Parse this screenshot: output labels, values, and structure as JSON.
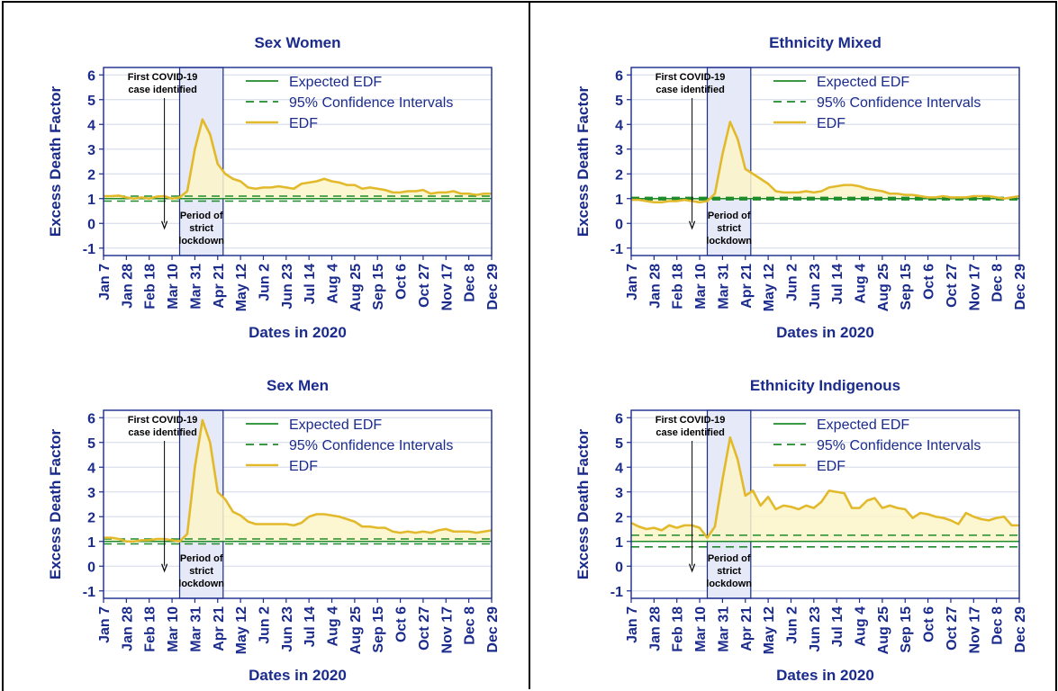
{
  "chart_data": [
    {
      "type": "line",
      "title": "Sex Women",
      "xlabel": "Dates in 2020",
      "ylabel": "Excess Death Factor",
      "ylim": [
        -1.3,
        6.3
      ],
      "yticks": [
        -1,
        0,
        1,
        2,
        3,
        4,
        5,
        6
      ],
      "xlim": [
        "2020-01-07",
        "2020-12-29"
      ],
      "x_ticks": [
        "Jan 7",
        "Jan 28",
        "Feb 18",
        "Mar 10",
        "Mar 31",
        "Apr 21",
        "May 12",
        "Jun 2",
        "Jun 23",
        "Jul 14",
        "Aug 4",
        "Aug 25",
        "Sep 15",
        "Oct 6",
        "Oct 27",
        "Nov 17",
        "Dec 8",
        "Dec 29"
      ],
      "grid": "horizontal",
      "legend_position": "top-right",
      "legend": [
        "Expected EDF",
        "95% Confidence Intervals",
        "EDF"
      ],
      "annotations": {
        "first_case_lines": [
          "First COVID-19",
          "case identified"
        ],
        "first_case_date": "2020-03-03",
        "lockdown_lines": [
          "Period of",
          "strict",
          "lockdown"
        ],
        "lockdown_start": "2020-03-17",
        "lockdown_end": "2020-04-26"
      },
      "expected": 1,
      "ci": [
        0.9,
        1.1
      ],
      "x": [
        "2020-01-07",
        "2020-01-14",
        "2020-01-21",
        "2020-01-28",
        "2020-02-04",
        "2020-02-11",
        "2020-02-18",
        "2020-02-25",
        "2020-03-03",
        "2020-03-10",
        "2020-03-17",
        "2020-03-24",
        "2020-03-31",
        "2020-04-07",
        "2020-04-14",
        "2020-04-21",
        "2020-04-28",
        "2020-05-05",
        "2020-05-12",
        "2020-05-19",
        "2020-05-26",
        "2020-06-02",
        "2020-06-09",
        "2020-06-16",
        "2020-06-23",
        "2020-06-30",
        "2020-07-07",
        "2020-07-14",
        "2020-07-21",
        "2020-07-28",
        "2020-08-04",
        "2020-08-11",
        "2020-08-18",
        "2020-08-25",
        "2020-09-01",
        "2020-09-08",
        "2020-09-15",
        "2020-09-22",
        "2020-09-29",
        "2020-10-06",
        "2020-10-13",
        "2020-10-20",
        "2020-10-27",
        "2020-11-03",
        "2020-11-10",
        "2020-11-17",
        "2020-11-24",
        "2020-12-01",
        "2020-12-08",
        "2020-12-15",
        "2020-12-22",
        "2020-12-29"
      ],
      "series": [
        {
          "name": "EDF",
          "values": [
            1.1,
            1.1,
            1.12,
            1.05,
            1.0,
            1.05,
            1.0,
            1.08,
            1.1,
            1.0,
            1.05,
            1.3,
            3.0,
            4.2,
            3.6,
            2.4,
            2.0,
            1.8,
            1.7,
            1.45,
            1.4,
            1.45,
            1.45,
            1.5,
            1.45,
            1.4,
            1.6,
            1.65,
            1.7,
            1.8,
            1.7,
            1.65,
            1.55,
            1.55,
            1.4,
            1.45,
            1.4,
            1.35,
            1.25,
            1.25,
            1.3,
            1.3,
            1.35,
            1.2,
            1.25,
            1.25,
            1.3,
            1.2,
            1.2,
            1.15,
            1.2,
            1.2
          ]
        }
      ]
    },
    {
      "type": "line",
      "title": "Ethnicity Mixed",
      "xlabel": "Dates in 2020",
      "ylabel": "Excess Death Factor",
      "ylim": [
        -1.3,
        6.3
      ],
      "yticks": [
        -1,
        0,
        1,
        2,
        3,
        4,
        5,
        6
      ],
      "xlim": [
        "2020-01-07",
        "2020-12-29"
      ],
      "x_ticks": [
        "Jan 7",
        "Jan 28",
        "Feb 18",
        "Mar 10",
        "Mar 31",
        "Apr 21",
        "May 12",
        "Jun 2",
        "Jun 23",
        "Jul 14",
        "Aug 4",
        "Aug 25",
        "Sep 15",
        "Oct 6",
        "Oct 27",
        "Nov 17",
        "Dec 8",
        "Dec 29"
      ],
      "grid": "horizontal",
      "legend_position": "top-right",
      "legend": [
        "Expected EDF",
        "95% Confidence Intervals",
        "EDF"
      ],
      "annotations": {
        "first_case_lines": [
          "First COVID-19",
          "case identified"
        ],
        "first_case_date": "2020-03-03",
        "lockdown_lines": [
          "Period of",
          "strict",
          "lockdown"
        ],
        "lockdown_start": "2020-03-17",
        "lockdown_end": "2020-04-26"
      },
      "expected": 1,
      "ci": [
        0.95,
        1.05
      ],
      "x": [
        "2020-01-07",
        "2020-01-14",
        "2020-01-21",
        "2020-01-28",
        "2020-02-04",
        "2020-02-11",
        "2020-02-18",
        "2020-02-25",
        "2020-03-03",
        "2020-03-10",
        "2020-03-17",
        "2020-03-24",
        "2020-03-31",
        "2020-04-07",
        "2020-04-14",
        "2020-04-21",
        "2020-04-28",
        "2020-05-05",
        "2020-05-12",
        "2020-05-19",
        "2020-05-26",
        "2020-06-02",
        "2020-06-09",
        "2020-06-16",
        "2020-06-23",
        "2020-06-30",
        "2020-07-07",
        "2020-07-14",
        "2020-07-21",
        "2020-07-28",
        "2020-08-04",
        "2020-08-11",
        "2020-08-18",
        "2020-08-25",
        "2020-09-01",
        "2020-09-08",
        "2020-09-15",
        "2020-09-22",
        "2020-09-29",
        "2020-10-06",
        "2020-10-13",
        "2020-10-20",
        "2020-10-27",
        "2020-11-03",
        "2020-11-10",
        "2020-11-17",
        "2020-11-24",
        "2020-12-01",
        "2020-12-08",
        "2020-12-15",
        "2020-12-22",
        "2020-12-29"
      ],
      "series": [
        {
          "name": "EDF",
          "values": [
            0.95,
            0.95,
            0.9,
            0.85,
            0.85,
            0.9,
            0.9,
            0.95,
            0.9,
            0.85,
            0.9,
            1.2,
            2.8,
            4.1,
            3.4,
            2.2,
            2.0,
            1.8,
            1.6,
            1.3,
            1.25,
            1.25,
            1.25,
            1.3,
            1.25,
            1.3,
            1.45,
            1.5,
            1.55,
            1.55,
            1.5,
            1.4,
            1.35,
            1.3,
            1.2,
            1.2,
            1.15,
            1.15,
            1.1,
            1.05,
            1.05,
            1.1,
            1.05,
            1.05,
            1.05,
            1.1,
            1.1,
            1.1,
            1.05,
            1.0,
            1.05,
            1.1
          ]
        }
      ]
    },
    {
      "type": "line",
      "title": "Sex Men",
      "xlabel": "Dates in 2020",
      "ylabel": "Excess Death Factor",
      "ylim": [
        -1.3,
        6.3
      ],
      "yticks": [
        -1,
        0,
        1,
        2,
        3,
        4,
        5,
        6
      ],
      "xlim": [
        "2020-01-07",
        "2020-12-29"
      ],
      "x_ticks": [
        "Jan 7",
        "Jan 28",
        "Feb 18",
        "Mar 10",
        "Mar 31",
        "Apr 21",
        "May 12",
        "Jun 2",
        "Jun 23",
        "Jul 14",
        "Aug 4",
        "Aug 25",
        "Sep 15",
        "Oct 6",
        "Oct 27",
        "Nov 17",
        "Dec 8",
        "Dec 29"
      ],
      "grid": "horizontal",
      "legend_position": "top-right",
      "legend": [
        "Expected EDF",
        "95% Confidence Intervals",
        "EDF"
      ],
      "annotations": {
        "first_case_lines": [
          "First COVID-19",
          "case identified"
        ],
        "first_case_date": "2020-03-03",
        "lockdown_lines": [
          "Period of",
          "strict",
          "lockdown"
        ],
        "lockdown_start": "2020-03-17",
        "lockdown_end": "2020-04-26"
      },
      "expected": 1,
      "ci": [
        0.9,
        1.1
      ],
      "x": [
        "2020-01-07",
        "2020-01-14",
        "2020-01-21",
        "2020-01-28",
        "2020-02-04",
        "2020-02-11",
        "2020-02-18",
        "2020-02-25",
        "2020-03-03",
        "2020-03-10",
        "2020-03-17",
        "2020-03-24",
        "2020-03-31",
        "2020-04-07",
        "2020-04-14",
        "2020-04-21",
        "2020-04-28",
        "2020-05-05",
        "2020-05-12",
        "2020-05-19",
        "2020-05-26",
        "2020-06-02",
        "2020-06-09",
        "2020-06-16",
        "2020-06-23",
        "2020-06-30",
        "2020-07-07",
        "2020-07-14",
        "2020-07-21",
        "2020-07-28",
        "2020-08-04",
        "2020-08-11",
        "2020-08-18",
        "2020-08-25",
        "2020-09-01",
        "2020-09-08",
        "2020-09-15",
        "2020-09-22",
        "2020-09-29",
        "2020-10-06",
        "2020-10-13",
        "2020-10-20",
        "2020-10-27",
        "2020-11-03",
        "2020-11-10",
        "2020-11-17",
        "2020-11-24",
        "2020-12-01",
        "2020-12-08",
        "2020-12-15",
        "2020-12-22",
        "2020-12-29"
      ],
      "series": [
        {
          "name": "EDF",
          "values": [
            1.15,
            1.15,
            1.1,
            1.0,
            1.0,
            1.05,
            1.05,
            1.1,
            1.1,
            1.05,
            1.0,
            1.3,
            4.0,
            5.9,
            5.0,
            3.0,
            2.7,
            2.2,
            2.05,
            1.8,
            1.7,
            1.7,
            1.7,
            1.7,
            1.7,
            1.65,
            1.75,
            2.0,
            2.1,
            2.1,
            2.05,
            2.0,
            1.9,
            1.8,
            1.6,
            1.6,
            1.55,
            1.55,
            1.4,
            1.35,
            1.4,
            1.35,
            1.4,
            1.35,
            1.45,
            1.5,
            1.4,
            1.4,
            1.4,
            1.35,
            1.4,
            1.45
          ]
        }
      ]
    },
    {
      "type": "line",
      "title": "Ethnicity Indigenous",
      "xlabel": "Dates in 2020",
      "ylabel": "Excess Death Factor",
      "ylim": [
        -1.3,
        6.3
      ],
      "yticks": [
        -1,
        0,
        1,
        2,
        3,
        4,
        5,
        6
      ],
      "xlim": [
        "2020-01-07",
        "2020-12-29"
      ],
      "x_ticks": [
        "Jan 7",
        "Jan 28",
        "Feb 18",
        "Mar 10",
        "Mar 31",
        "Apr 21",
        "May 12",
        "Jun 2",
        "Jun 23",
        "Jul 14",
        "Aug 4",
        "Aug 25",
        "Sep 15",
        "Oct 6",
        "Oct 27",
        "Nov 17",
        "Dec 8",
        "Dec 29"
      ],
      "grid": "horizontal",
      "legend_position": "top-right",
      "legend": [
        "Expected EDF",
        "95% Confidence Intervals",
        "EDF"
      ],
      "annotations": {
        "first_case_lines": [
          "First COVID-19",
          "case identified"
        ],
        "first_case_date": "2020-03-03",
        "lockdown_lines": [
          "Period of",
          "strict",
          "lockdown"
        ],
        "lockdown_start": "2020-03-17",
        "lockdown_end": "2020-04-26"
      },
      "expected": 1,
      "ci": [
        0.78,
        1.25
      ],
      "x": [
        "2020-01-07",
        "2020-01-14",
        "2020-01-21",
        "2020-01-28",
        "2020-02-04",
        "2020-02-11",
        "2020-02-18",
        "2020-02-25",
        "2020-03-03",
        "2020-03-10",
        "2020-03-17",
        "2020-03-24",
        "2020-03-31",
        "2020-04-07",
        "2020-04-14",
        "2020-04-21",
        "2020-04-28",
        "2020-05-05",
        "2020-05-12",
        "2020-05-19",
        "2020-05-26",
        "2020-06-02",
        "2020-06-09",
        "2020-06-16",
        "2020-06-23",
        "2020-06-30",
        "2020-07-07",
        "2020-07-14",
        "2020-07-21",
        "2020-07-28",
        "2020-08-04",
        "2020-08-11",
        "2020-08-18",
        "2020-08-25",
        "2020-09-01",
        "2020-09-08",
        "2020-09-15",
        "2020-09-22",
        "2020-09-29",
        "2020-10-06",
        "2020-10-13",
        "2020-10-20",
        "2020-10-27",
        "2020-11-03",
        "2020-11-10",
        "2020-11-17",
        "2020-11-24",
        "2020-12-01",
        "2020-12-08",
        "2020-12-15",
        "2020-12-22",
        "2020-12-29"
      ],
      "series": [
        {
          "name": "EDF",
          "values": [
            1.75,
            1.6,
            1.5,
            1.55,
            1.45,
            1.65,
            1.55,
            1.65,
            1.65,
            1.55,
            1.15,
            1.6,
            3.5,
            5.2,
            4.3,
            2.85,
            3.05,
            2.45,
            2.8,
            2.3,
            2.45,
            2.4,
            2.3,
            2.45,
            2.35,
            2.6,
            3.05,
            3.0,
            2.95,
            2.35,
            2.35,
            2.65,
            2.75,
            2.35,
            2.45,
            2.35,
            2.3,
            1.95,
            2.15,
            2.1,
            2.0,
            1.95,
            1.85,
            1.7,
            2.15,
            2.0,
            1.9,
            1.85,
            1.95,
            2.0,
            1.65,
            1.65
          ]
        }
      ]
    }
  ],
  "colors": {
    "title_text": "#1a2b8c",
    "expected_line": "#1e8c2a",
    "ci_line": "#1e8c2a",
    "edf_line": "#e3b92c",
    "edf_fill": "#fbf4c9",
    "lockdown_fill": "#e6e9f7",
    "lockdown_border": "#1a2b8c",
    "axis": "#1a2b8c",
    "grid": "#d4d8e8",
    "page_border": "#000000"
  }
}
